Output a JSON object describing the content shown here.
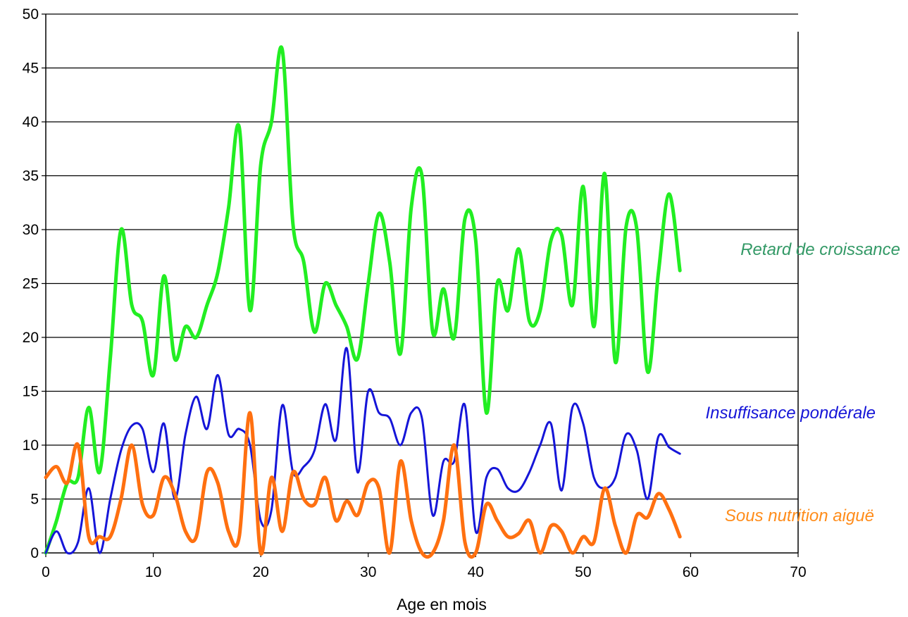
{
  "chart_data": {
    "type": "line",
    "title": "",
    "xlabel": "Age en mois",
    "ylabel": "",
    "xlim": [
      0,
      70
    ],
    "ylim": [
      0,
      50
    ],
    "xticks": [
      0,
      10,
      20,
      30,
      40,
      50,
      60,
      70
    ],
    "yticks": [
      0,
      5,
      10,
      15,
      20,
      25,
      30,
      35,
      40,
      45,
      50
    ],
    "grid": "horizontal",
    "legend": "inline labels at right of each series",
    "series": [
      {
        "name": "Retard de croissance",
        "color": "#22ee22",
        "label_color": "#339966",
        "x": [
          0,
          1,
          2,
          3,
          4,
          5,
          6,
          7,
          8,
          9,
          10,
          11,
          12,
          13,
          14,
          15,
          16,
          17,
          18,
          19,
          20,
          21,
          22,
          23,
          24,
          25,
          26,
          27,
          28,
          29,
          30,
          31,
          32,
          33,
          34,
          35,
          36,
          37,
          38,
          39,
          40,
          41,
          42,
          43,
          44,
          45,
          46,
          47,
          48,
          49,
          50,
          51,
          52,
          53,
          54,
          55,
          56,
          57,
          58,
          59
        ],
        "values": [
          0,
          3,
          6.5,
          7,
          13.5,
          7.5,
          18,
          30,
          23,
          21.5,
          16.5,
          25.7,
          18,
          21,
          20,
          23,
          26,
          32,
          39.5,
          22.5,
          36,
          40,
          46.7,
          30.5,
          27,
          20.5,
          25,
          23,
          21,
          18,
          25,
          31.5,
          27,
          18.5,
          32,
          35,
          20.5,
          24.5,
          20,
          31,
          29,
          13,
          25,
          22.5,
          28.2,
          21.5,
          22.5,
          29,
          29.5,
          23,
          34,
          21,
          35.2,
          17.7,
          30.3,
          30,
          16.8,
          26,
          33.3,
          26.2
        ]
      },
      {
        "name": "Insuffisance pondérale",
        "color": "#1515d8",
        "label_color": "#1515d8",
        "x": [
          0,
          1,
          2,
          3,
          4,
          5,
          6,
          7,
          8,
          9,
          10,
          11,
          12,
          13,
          14,
          15,
          16,
          17,
          18,
          19,
          20,
          21,
          22,
          23,
          24,
          25,
          26,
          27,
          28,
          29,
          30,
          31,
          32,
          33,
          34,
          35,
          36,
          37,
          38,
          39,
          40,
          41,
          42,
          43,
          44,
          45,
          46,
          47,
          48,
          49,
          50,
          51,
          52,
          53,
          54,
          55,
          56,
          57,
          58,
          59
        ],
        "values": [
          0,
          2,
          0,
          1,
          6,
          0,
          5,
          9.5,
          11.8,
          11.5,
          7.5,
          12,
          5,
          11,
          14.5,
          11.5,
          16.5,
          11,
          11.5,
          10,
          3,
          4,
          13.7,
          7.5,
          8,
          9.5,
          13.8,
          10.5,
          19,
          7.5,
          15,
          13,
          12.5,
          10,
          13,
          12.5,
          3.5,
          8.5,
          8.5,
          13.7,
          2,
          7,
          7.8,
          6,
          5.8,
          7.5,
          10,
          12,
          5.8,
          13.5,
          12,
          7,
          6,
          7,
          11,
          9.5,
          5,
          10.8,
          9.8,
          9.2
        ]
      },
      {
        "name": "Sous nutrition aiguë",
        "label_text": "Sous nutrition aiguë",
        "color": "#ff7010",
        "label_color": "#ff8c1a",
        "x": [
          0,
          1,
          2,
          3,
          4,
          5,
          6,
          7,
          8,
          9,
          10,
          11,
          12,
          13,
          14,
          15,
          16,
          17,
          18,
          19,
          20,
          21,
          22,
          23,
          24,
          25,
          26,
          27,
          28,
          29,
          30,
          31,
          32,
          33,
          34,
          35,
          36,
          37,
          38,
          39,
          40,
          41,
          42,
          43,
          44,
          45,
          46,
          47,
          48,
          49,
          50,
          51,
          52,
          53,
          54,
          55,
          56,
          57,
          58,
          59
        ],
        "values": [
          7,
          8,
          6.5,
          10,
          1.5,
          1.5,
          1.5,
          5,
          10,
          4.5,
          3.5,
          7,
          5.5,
          2,
          1.5,
          7.5,
          6.5,
          2,
          1.5,
          13,
          0,
          7,
          2,
          7.5,
          5,
          4.5,
          7,
          3,
          4.8,
          3.5,
          6.5,
          6,
          0,
          8.5,
          3,
          0,
          0,
          3,
          10,
          1,
          0,
          4.5,
          3,
          1.5,
          1.8,
          3,
          0,
          2.5,
          2,
          0,
          1.5,
          1,
          6,
          2.5,
          0,
          3.5,
          3.3,
          5.5,
          4,
          1.5
        ]
      }
    ]
  }
}
